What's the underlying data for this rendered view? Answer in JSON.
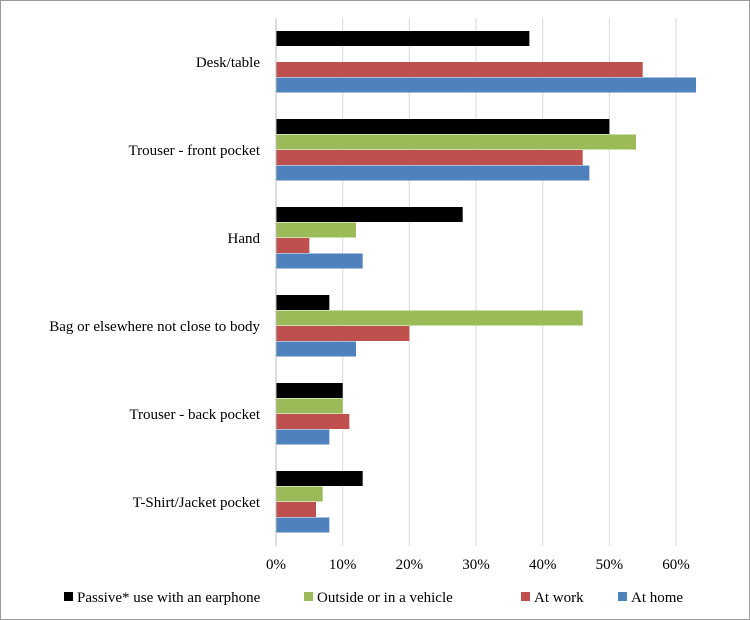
{
  "chart_data": {
    "type": "bar",
    "orientation": "horizontal",
    "title": "",
    "xlabel": "",
    "ylabel": "",
    "categories": [
      "Desk/table",
      "Trouser - front pocket",
      "Hand",
      "Bag or elsewhere not close to body",
      "Trouser - back pocket",
      "T-Shirt/Jacket pocket"
    ],
    "series": [
      {
        "name": "Passive* use with an earphone",
        "color": "#000000",
        "values": [
          38,
          50,
          28,
          8,
          10,
          13
        ]
      },
      {
        "name": "Outside or in a vehicle",
        "color": "#9bbb59",
        "values": [
          null,
          54,
          12,
          46,
          10,
          7
        ]
      },
      {
        "name": "At work",
        "color": "#c0504d",
        "values": [
          55,
          46,
          5,
          20,
          11,
          6
        ]
      },
      {
        "name": "At home",
        "color": "#4f81bd",
        "values": [
          63,
          47,
          13,
          12,
          8,
          8
        ]
      }
    ],
    "xlim": [
      0,
      60
    ],
    "x_ticks": [
      "0%",
      "10%",
      "20%",
      "30%",
      "40%",
      "50%",
      "60%"
    ],
    "unit": "%",
    "grid": true,
    "legend_position": "bottom"
  }
}
